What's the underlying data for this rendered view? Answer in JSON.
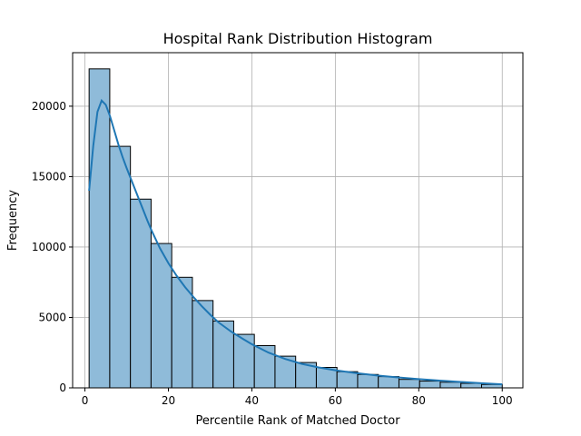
{
  "chart_data": {
    "type": "bar",
    "subtype": "histogram-with-kde",
    "title": "Hospital Rank Distribution Histogram",
    "xlabel": "Percentile Rank of Matched Doctor",
    "ylabel": "Frequency",
    "xlim": [
      -2.95,
      104.95
    ],
    "ylim": [
      0,
      23800
    ],
    "xticks": [
      0,
      20,
      40,
      60,
      80,
      100
    ],
    "yticks": [
      0,
      5000,
      10000,
      15000,
      20000
    ],
    "grid": true,
    "bar_color": "#8fbbd9",
    "bar_edge_color": "#000000",
    "kde_color": "#1f77b4",
    "bins": [
      {
        "x0": 1.0,
        "x1": 5.95,
        "count": 22650
      },
      {
        "x0": 5.95,
        "x1": 10.9,
        "count": 17150
      },
      {
        "x0": 10.9,
        "x1": 15.85,
        "count": 13400
      },
      {
        "x0": 15.85,
        "x1": 20.8,
        "count": 10250
      },
      {
        "x0": 20.8,
        "x1": 25.75,
        "count": 7850
      },
      {
        "x0": 25.75,
        "x1": 30.7,
        "count": 6200
      },
      {
        "x0": 30.7,
        "x1": 35.65,
        "count": 4750
      },
      {
        "x0": 35.65,
        "x1": 40.6,
        "count": 3800
      },
      {
        "x0": 40.6,
        "x1": 45.55,
        "count": 3000
      },
      {
        "x0": 45.55,
        "x1": 50.5,
        "count": 2250
      },
      {
        "x0": 50.5,
        "x1": 55.45,
        "count": 1800
      },
      {
        "x0": 55.45,
        "x1": 60.4,
        "count": 1450
      },
      {
        "x0": 60.4,
        "x1": 65.35,
        "count": 1150
      },
      {
        "x0": 65.35,
        "x1": 70.3,
        "count": 950
      },
      {
        "x0": 70.3,
        "x1": 75.25,
        "count": 800
      },
      {
        "x0": 75.25,
        "x1": 80.2,
        "count": 600
      },
      {
        "x0": 80.2,
        "x1": 85.15,
        "count": 480
      },
      {
        "x0": 85.15,
        "x1": 90.1,
        "count": 400
      },
      {
        "x0": 90.1,
        "x1": 95.05,
        "count": 320
      },
      {
        "x0": 95.05,
        "x1": 100.0,
        "count": 240
      }
    ],
    "kde": {
      "x": [
        1,
        2,
        3,
        4,
        5,
        6,
        7,
        8,
        9,
        10,
        11,
        12,
        13,
        14,
        15,
        16,
        18,
        20,
        22,
        24,
        26,
        28,
        30,
        32,
        35,
        38,
        40,
        44,
        48,
        52,
        56,
        60,
        65,
        70,
        75,
        80,
        85,
        90,
        95,
        100
      ],
      "y": [
        14000,
        17200,
        19600,
        20400,
        20100,
        19300,
        18300,
        17300,
        16400,
        15600,
        14850,
        14100,
        13350,
        12600,
        11850,
        11150,
        9900,
        8850,
        7950,
        7150,
        6450,
        5800,
        5200,
        4650,
        4000,
        3450,
        3100,
        2500,
        2050,
        1700,
        1450,
        1250,
        1050,
        880,
        740,
        620,
        520,
        420,
        330,
        250
      ]
    }
  }
}
